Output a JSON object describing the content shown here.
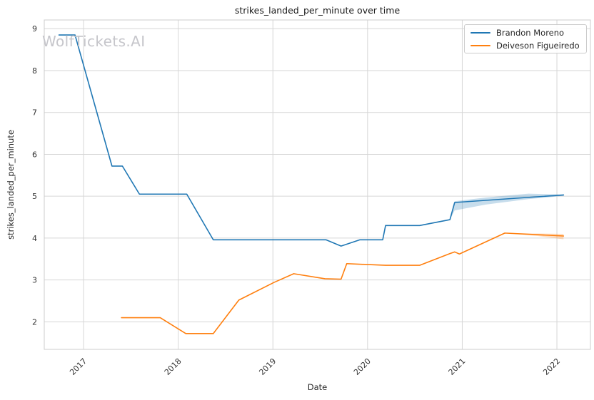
{
  "watermark": "WolfTickets.AI",
  "colors": {
    "accent_blue": "#1f77b4",
    "accent_orange": "#ff7f0e",
    "grid": "#d6d6d6",
    "spine": "#cccccc",
    "tick_text": "#333333",
    "watermark_text": "#c6c6cb"
  },
  "chart_data": {
    "type": "line",
    "title": "strikes_landed_per_minute over time",
    "xlabel": "Date",
    "ylabel": "strikes_landed_per_minute",
    "xlim": [
      2016.585,
      2022.354
    ],
    "ylim": [
      1.343,
      9.208
    ],
    "xticks": [
      2017,
      2018,
      2019,
      2020,
      2021,
      2022
    ],
    "yticks": [
      2,
      3,
      4,
      5,
      6,
      7,
      8,
      9
    ],
    "grid": true,
    "legend_position": "upper right",
    "series": [
      {
        "name": "Brandon Moreno",
        "color": "#1f77b4",
        "x": [
          2016.74,
          2016.91,
          2017.3,
          2017.41,
          2017.59,
          2018.09,
          2018.37,
          2019.56,
          2019.72,
          2019.92,
          2020.16,
          2020.19,
          2020.55,
          2020.87,
          2020.92,
          2022.07
        ],
        "y": [
          8.85,
          8.85,
          5.72,
          5.72,
          5.05,
          5.05,
          3.96,
          3.96,
          3.81,
          3.96,
          3.96,
          4.3,
          4.3,
          4.44,
          4.85,
          5.03
        ],
        "band": {
          "x": [
            2020.87,
            2020.92,
            2021.25,
            2021.7,
            2022.07
          ],
          "upper": [
            4.44,
            4.88,
            4.97,
            5.06,
            5.04
          ],
          "lower": [
            4.44,
            4.66,
            4.8,
            4.93,
            5.01
          ]
        }
      },
      {
        "name": "Deiveson Figueiredo",
        "color": "#ff7f0e",
        "x": [
          2017.4,
          2017.81,
          2018.08,
          2018.37,
          2018.64,
          2019.01,
          2019.22,
          2019.55,
          2019.72,
          2019.78,
          2020.19,
          2020.55,
          2020.87,
          2020.92,
          2020.97,
          2021.45,
          2022.07
        ],
        "y": [
          2.1,
          2.1,
          1.72,
          1.72,
          2.52,
          2.94,
          3.15,
          3.03,
          3.02,
          3.39,
          3.35,
          3.35,
          3.63,
          3.67,
          3.62,
          4.12,
          4.05
        ],
        "band": {
          "x": [
            2021.45,
            2021.8,
            2022.07
          ],
          "upper": [
            4.12,
            4.11,
            4.1
          ],
          "lower": [
            4.12,
            4.05,
            3.97
          ]
        }
      }
    ]
  }
}
